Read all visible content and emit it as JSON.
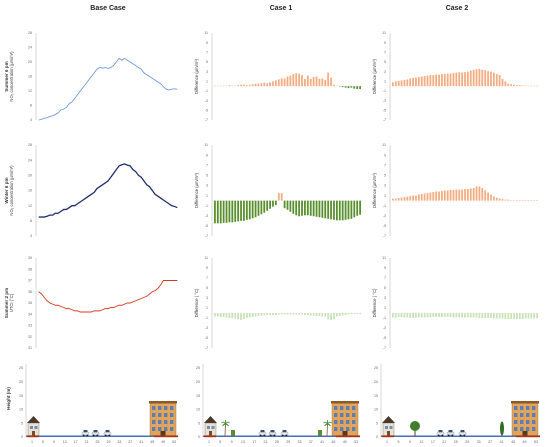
{
  "columns": [
    "Base Case",
    "Case 1",
    "Case 2"
  ],
  "rows": [
    {
      "label": "Summer 6 pm",
      "unit_base": "NO₂ concentration (µm/m³)",
      "unit_case": "Difference (µm/m³)"
    },
    {
      "label": "Winter 6 pm",
      "unit_base": "NO₂ concentration (µm/m³)",
      "unit_case": "Difference (µm/m³)"
    },
    {
      "label": "Summer 2 pm",
      "unit_base": "UTCI (°C)",
      "unit_case": "Difference ( °C)"
    },
    {
      "label": "Height (m)",
      "unit_base": "",
      "unit_case": ""
    }
  ],
  "colors": {
    "summer_line": "#6f9ae0",
    "winter_line": "#1f2e6e",
    "utci_line": "#d63a22",
    "pos_bar": "#f4ad82",
    "neg_bar": "#5a8f2e",
    "utci_neg_bar": "#c9e2ba",
    "ground": "#b02a1a"
  },
  "chart_data": [
    {
      "type": "line",
      "panel": "Base Case / Summer 6 pm",
      "x": [
        1,
        2,
        3,
        4,
        5,
        6,
        7,
        8,
        9,
        10,
        11,
        12,
        13,
        14,
        15,
        16,
        17,
        18,
        19,
        20,
        21,
        22,
        23,
        24,
        25,
        26,
        27,
        28,
        29,
        30,
        31,
        32,
        33,
        34,
        35,
        36,
        37,
        38,
        39,
        40,
        41,
        42,
        43,
        44,
        45,
        46,
        47,
        48,
        49,
        50,
        51
      ],
      "values": [
        4,
        4.2,
        4.5,
        4.6,
        5,
        5.2,
        5.5,
        6,
        6.8,
        7,
        7.5,
        8.5,
        9,
        10,
        11,
        12,
        13,
        14,
        15,
        16,
        17,
        18,
        18.5,
        18.3,
        18.5,
        18.2,
        18.5,
        19,
        20,
        21,
        20.5,
        21,
        20.5,
        20,
        19.5,
        19,
        18.5,
        18,
        17,
        16.5,
        16,
        15.5,
        15,
        14.5,
        14,
        13.2,
        12.5,
        12.3,
        12.5,
        12.6,
        12.5
      ],
      "ylim": [
        4,
        28
      ],
      "yticks": [
        4,
        8,
        12,
        16,
        20,
        24,
        28
      ]
    },
    {
      "type": "line",
      "panel": "Base Case / Winter 6 pm",
      "x": [
        1,
        2,
        3,
        4,
        5,
        6,
        7,
        8,
        9,
        10,
        11,
        12,
        13,
        14,
        15,
        16,
        17,
        18,
        19,
        20,
        21,
        22,
        23,
        24,
        25,
        26,
        27,
        28,
        29,
        30,
        31,
        32,
        33,
        34,
        35,
        36,
        37,
        38,
        39,
        40,
        41,
        42,
        43,
        44,
        45,
        46,
        47,
        48,
        49,
        50,
        51
      ],
      "values": [
        9,
        9,
        9,
        9.2,
        9.5,
        9.5,
        10,
        10,
        10.5,
        11,
        11,
        11.5,
        12,
        12,
        12.5,
        13,
        13.5,
        14,
        14.5,
        15,
        15.5,
        16.5,
        17,
        17.5,
        18,
        18.5,
        19.5,
        20.5,
        21.5,
        22.5,
        22.8,
        23,
        22.7,
        22.5,
        21.5,
        21,
        20,
        19.5,
        18.5,
        17.5,
        17,
        16,
        15,
        14.5,
        14,
        13.5,
        13,
        12.5,
        12,
        11.8,
        11.5
      ],
      "ylim": [
        4,
        28
      ],
      "yticks": [
        4,
        8,
        12,
        16,
        20,
        24,
        28
      ]
    },
    {
      "type": "line",
      "panel": "Base Case / Summer 2 pm",
      "x": [
        1,
        2,
        3,
        4,
        5,
        6,
        7,
        8,
        9,
        10,
        11,
        12,
        13,
        14,
        15,
        16,
        17,
        18,
        19,
        20,
        21,
        22,
        23,
        24,
        25,
        26,
        27,
        28,
        29,
        30,
        31,
        32,
        33,
        34,
        35,
        36,
        37,
        38,
        39,
        40,
        41,
        42,
        43,
        44,
        45,
        46,
        47,
        48,
        49,
        50,
        51
      ],
      "values": [
        36,
        35.8,
        35.5,
        35.2,
        35,
        34.9,
        34.8,
        34.8,
        34.7,
        34.6,
        34.5,
        34.5,
        34.4,
        34.3,
        34.3,
        34.2,
        34.2,
        34.2,
        34.2,
        34.2,
        34.3,
        34.3,
        34.3,
        34.4,
        34.5,
        34.5,
        34.6,
        34.6,
        34.7,
        34.8,
        34.8,
        34.9,
        35,
        35,
        35.1,
        35.2,
        35.3,
        35.4,
        35.5,
        35.6,
        35.8,
        36,
        36.1,
        36.3,
        36.6,
        37,
        37,
        37,
        37,
        37,
        37
      ],
      "ylim": [
        31,
        39
      ],
      "yticks": [
        31,
        32,
        33,
        34,
        35,
        36,
        37,
        38,
        39
      ]
    },
    {
      "type": "bar",
      "panel": "Case 1 / Summer 6 pm",
      "x": [
        1,
        2,
        3,
        4,
        5,
        6,
        7,
        8,
        9,
        10,
        11,
        12,
        13,
        14,
        15,
        16,
        17,
        18,
        19,
        20,
        21,
        22,
        23,
        24,
        25,
        26,
        27,
        28,
        29,
        30,
        31,
        32,
        33,
        34,
        35,
        36,
        37,
        38,
        39,
        40,
        41,
        42,
        43,
        44,
        45,
        46,
        47,
        48,
        49,
        50,
        51
      ],
      "values": [
        0.1,
        0.1,
        0.1,
        0.1,
        0.1,
        0.2,
        0.1,
        0.1,
        0.2,
        0.3,
        0.3,
        0.2,
        0.3,
        0.4,
        0.5,
        0.5,
        0.6,
        0.7,
        0.6,
        0.8,
        1,
        1.2,
        1.4,
        1.6,
        1.6,
        2,
        2.2,
        2.5,
        2.7,
        2.6,
        2.3,
        1.5,
        2.2,
        1.5,
        1.9,
        2,
        1.5,
        1.6,
        1.3,
        2.8,
        1.8,
        0.3,
        0.1,
        -0.1,
        -0.2,
        -0.3,
        -0.4,
        -0.3,
        -0.5,
        -0.6,
        -0.6
      ],
      "ylim": [
        -7,
        11
      ],
      "yticks": [
        -7,
        -5,
        -3,
        -1,
        1,
        3,
        5,
        7,
        9,
        11
      ]
    },
    {
      "type": "bar",
      "panel": "Case 1 / Winter 6 pm",
      "x": [
        1,
        2,
        3,
        4,
        5,
        6,
        7,
        8,
        9,
        10,
        11,
        12,
        13,
        14,
        15,
        16,
        17,
        18,
        19,
        20,
        21,
        22,
        23,
        24,
        25,
        26,
        27,
        28,
        29,
        30,
        31,
        32,
        33,
        34,
        35,
        36,
        37,
        38,
        39,
        40,
        41,
        42,
        43,
        44,
        45,
        46,
        47,
        48,
        49,
        50,
        51
      ],
      "values": [
        -4.5,
        -4.5,
        -4.5,
        -4.4,
        -4.4,
        -4.3,
        -4.3,
        -4.2,
        -4.1,
        -4,
        -4,
        -3.8,
        -3.7,
        -3.5,
        -3.3,
        -3,
        -2.7,
        -2.4,
        -2,
        -1.6,
        -1.2,
        -0.9,
        1.5,
        1.5,
        -1.5,
        -1.8,
        -2.2,
        -2.6,
        -2.9,
        -3.1,
        -3,
        -2.9,
        -2.9,
        -3,
        -3.1,
        -3.2,
        -3.3,
        -3.4,
        -3.5,
        -3.6,
        -3.7,
        -3.8,
        -3.9,
        -3.9,
        -3.9,
        -3.8,
        -3.7,
        -3.6,
        -3.3,
        -3,
        -2.8
      ],
      "ylim": [
        -7,
        11
      ],
      "yticks": [
        -7,
        -5,
        -3,
        -1,
        1,
        3,
        5,
        7,
        9,
        11
      ]
    },
    {
      "type": "bar",
      "panel": "Case 1 / Summer 2 pm",
      "x": [
        1,
        2,
        3,
        4,
        5,
        6,
        7,
        8,
        9,
        10,
        11,
        12,
        13,
        14,
        15,
        16,
        17,
        18,
        19,
        20,
        21,
        22,
        23,
        24,
        25,
        26,
        27,
        28,
        29,
        30,
        31,
        32,
        33,
        34,
        35,
        36,
        37,
        38,
        39,
        40,
        41,
        42,
        43,
        44,
        45,
        46,
        47,
        48,
        49,
        50,
        51
      ],
      "values": [
        -0.7,
        -0.7,
        -0.8,
        -0.8,
        -0.9,
        -1,
        -1,
        -1.1,
        -1.3,
        -1.4,
        -1.2,
        -1,
        -0.9,
        -0.8,
        -0.7,
        -0.6,
        -0.5,
        -0.5,
        -0.4,
        -0.4,
        -0.4,
        -0.4,
        -0.3,
        -0.3,
        -0.3,
        -0.3,
        -0.3,
        -0.3,
        -0.3,
        -0.3,
        -0.3,
        -0.4,
        -0.4,
        -0.5,
        -0.5,
        -0.6,
        -0.6,
        -0.7,
        -0.7,
        -1.3,
        -1.4,
        -1.3,
        -0.7,
        -0.6,
        -0.5,
        -0.4,
        -0.3,
        -0.2,
        -0.2,
        -0.2,
        -0.2
      ],
      "ylim": [
        -7,
        11
      ],
      "yticks": [
        -7,
        -5,
        -3,
        -1,
        1,
        3,
        5,
        7,
        9,
        11
      ]
    },
    {
      "type": "bar",
      "panel": "Case 2 / Summer 6 pm",
      "x": [
        1,
        2,
        3,
        4,
        5,
        6,
        7,
        8,
        9,
        10,
        11,
        12,
        13,
        14,
        15,
        16,
        17,
        18,
        19,
        20,
        21,
        22,
        23,
        24,
        25,
        26,
        27,
        28,
        29,
        30,
        31,
        32,
        33,
        34,
        35,
        36,
        37,
        38,
        39,
        40,
        41,
        42,
        43,
        44,
        45,
        46,
        47,
        48,
        49,
        50,
        51
      ],
      "values": [
        0.8,
        1,
        1.1,
        1.2,
        1.3,
        1.4,
        1.6,
        1.7,
        1.8,
        1.9,
        2,
        2.1,
        2.2,
        2.3,
        2.3,
        2.4,
        2.4,
        2.5,
        2.5,
        2.6,
        2.6,
        2.7,
        2.8,
        2.9,
        2.8,
        2.9,
        3,
        3.2,
        3.4,
        3.5,
        3.6,
        3.4,
        3.3,
        3.1,
        3,
        2.8,
        2.5,
        2.3,
        1.5,
        1,
        0.5,
        0.4,
        0.3,
        0.2,
        0.2,
        0.1,
        0.1,
        0.1,
        0.1,
        0.1,
        0.1
      ],
      "ylim": [
        -7,
        11
      ],
      "yticks": [
        -7,
        -5,
        -3,
        -1,
        1,
        3,
        5,
        7,
        9,
        11
      ]
    },
    {
      "type": "bar",
      "panel": "Case 2 / Winter 6 pm",
      "x": [
        1,
        2,
        3,
        4,
        5,
        6,
        7,
        8,
        9,
        10,
        11,
        12,
        13,
        14,
        15,
        16,
        17,
        18,
        19,
        20,
        21,
        22,
        23,
        24,
        25,
        26,
        27,
        28,
        29,
        30,
        31,
        32,
        33,
        34,
        35,
        36,
        37,
        38,
        39,
        40,
        41,
        42,
        43,
        44,
        45,
        46,
        47,
        48,
        49,
        50,
        51
      ],
      "values": [
        0.4,
        0.4,
        0.5,
        0.6,
        0.7,
        0.8,
        0.9,
        1,
        1,
        1.2,
        1.3,
        1.4,
        1.5,
        1.6,
        1.7,
        1.8,
        1.8,
        1.9,
        2,
        2,
        2.1,
        2.1,
        2.2,
        2.2,
        2.2,
        2.3,
        2.3,
        2.4,
        2.5,
        2.8,
        2.8,
        2.5,
        2,
        1.6,
        1.2,
        0.8,
        0.6,
        0.4,
        0.3,
        0.2,
        0.2,
        0.1,
        0.1,
        0.1,
        0.1,
        0.1,
        0.1,
        0.1,
        0.1,
        0.1,
        0.1
      ],
      "ylim": [
        -7,
        11
      ],
      "yticks": [
        -7,
        -5,
        -3,
        -1,
        1,
        3,
        5,
        7,
        9,
        11
      ]
    },
    {
      "type": "bar",
      "panel": "Case 2 / Summer 2 pm",
      "x": [
        1,
        2,
        3,
        4,
        5,
        6,
        7,
        8,
        9,
        10,
        11,
        12,
        13,
        14,
        15,
        16,
        17,
        18,
        19,
        20,
        21,
        22,
        23,
        24,
        25,
        26,
        27,
        28,
        29,
        30,
        31,
        32,
        33,
        34,
        35,
        36,
        37,
        38,
        39,
        40,
        41,
        42,
        43,
        44,
        45,
        46,
        47,
        48,
        49,
        50,
        51
      ],
      "values": [
        -0.9,
        -1,
        -0.8,
        -0.8,
        -0.9,
        -0.9,
        -1,
        -1,
        -1,
        -0.9,
        -0.9,
        -0.9,
        -0.9,
        -0.9,
        -0.8,
        -0.8,
        -0.8,
        -0.8,
        -0.8,
        -0.8,
        -0.8,
        -0.9,
        -0.9,
        -0.9,
        -0.9,
        -0.9,
        -0.9,
        -0.9,
        -0.9,
        -0.9,
        -1,
        -1,
        -1,
        -1,
        -1,
        -1.1,
        -1.1,
        -1.1,
        -1.1,
        -1.2,
        -1.2,
        -1.2,
        -1.2,
        -1.2,
        -1.2,
        -1.2,
        -1.1,
        -1.1,
        -1.1,
        -1.1,
        -1.1
      ],
      "ylim": [
        -7,
        11
      ],
      "yticks": [
        -7,
        -5,
        -3,
        -1,
        1,
        3,
        5,
        7,
        9,
        11
      ]
    }
  ],
  "height_axis": {
    "yticks": [
      0,
      5,
      10,
      15,
      20,
      25
    ],
    "xticks": [
      1,
      5,
      9,
      13,
      17,
      21,
      25,
      29,
      33,
      37,
      41,
      45,
      49,
      53
    ]
  }
}
